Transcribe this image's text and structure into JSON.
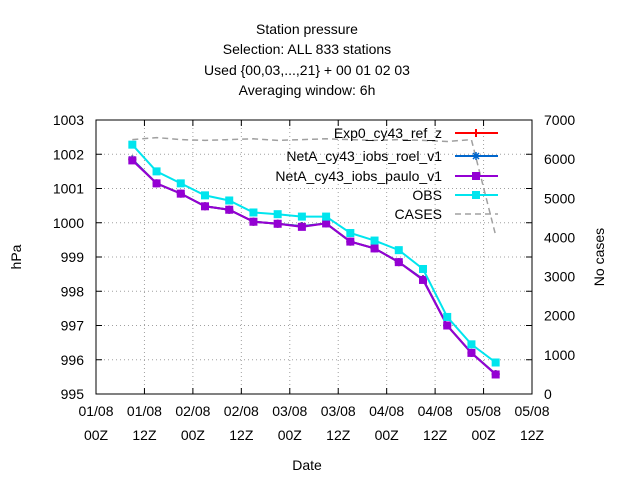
{
  "chart_data": {
    "type": "line",
    "title_lines": [
      "Station pressure",
      "Selection: ALL    833 stations",
      "Used {00,03,...,21} + 00 01 02 03",
      "Averaging window:  6h"
    ],
    "xlabel": "Date",
    "ylabel": "hPa",
    "y2label": "No cases",
    "ylim": [
      995,
      1003
    ],
    "y2lim": [
      0,
      7000
    ],
    "yticks": [
      "995",
      "996",
      "997",
      "998",
      "999",
      "1000",
      "1001",
      "1002",
      "1003"
    ],
    "y2ticks": [
      "0",
      "1000",
      "2000",
      "3000",
      "4000",
      "5000",
      "6000",
      "7000"
    ],
    "xticks": [
      [
        "01/08",
        "00Z"
      ],
      [
        "01/08",
        "12Z"
      ],
      [
        "02/08",
        "00Z"
      ],
      [
        "02/08",
        "12Z"
      ],
      [
        "03/08",
        "00Z"
      ],
      [
        "03/08",
        "12Z"
      ],
      [
        "04/08",
        "00Z"
      ],
      [
        "04/08",
        "12Z"
      ],
      [
        "05/08",
        "00Z"
      ],
      [
        "05/08",
        "12Z"
      ]
    ],
    "x_hours": [
      9,
      15,
      21,
      27,
      33,
      39,
      45,
      51,
      57,
      63,
      69,
      75,
      81,
      87,
      93,
      99
    ],
    "series": [
      {
        "name": "Exp0_cy43_ref_z",
        "color": "#ff0000",
        "marker": "plus",
        "values": [
          1001.85,
          1001.15,
          1000.85,
          1000.48,
          1000.38,
          1000.03,
          999.97,
          999.9,
          999.98,
          999.45,
          999.25,
          998.85,
          998.35,
          997.0,
          996.2,
          995.58
        ]
      },
      {
        "name": "NetA_cy43_iobs_roel_v1",
        "color": "#0066cc",
        "marker": "star",
        "values": [
          1001.85,
          1001.15,
          1000.85,
          1000.48,
          1000.38,
          1000.03,
          999.97,
          999.9,
          999.98,
          999.45,
          999.25,
          998.85,
          998.35,
          997.0,
          996.2,
          995.58
        ]
      },
      {
        "name": "NetA_cy43_iobs_paulo_v1",
        "color": "#9400d3",
        "marker": "square",
        "values": [
          1001.82,
          1001.15,
          1000.85,
          1000.48,
          1000.38,
          1000.03,
          999.97,
          999.88,
          999.98,
          999.45,
          999.25,
          998.85,
          998.33,
          997.0,
          996.2,
          995.57
        ]
      },
      {
        "name": "OBS",
        "color": "#00e5ee",
        "marker": "square",
        "values": [
          1002.28,
          1001.5,
          1001.15,
          1000.8,
          1000.65,
          1000.3,
          1000.25,
          1000.18,
          1000.18,
          999.7,
          999.48,
          999.2,
          998.65,
          997.25,
          996.45,
          995.92
        ]
      },
      {
        "name": "CASES",
        "color": "#a0a0a0",
        "marker": "none",
        "dash": true,
        "values": [
          6500,
          6550,
          6500,
          6480,
          6500,
          6520,
          6480,
          6500,
          6520,
          6500,
          6480,
          6500,
          6480,
          6450,
          6500,
          4050
        ]
      }
    ],
    "legend": "top-right",
    "grid": true
  }
}
